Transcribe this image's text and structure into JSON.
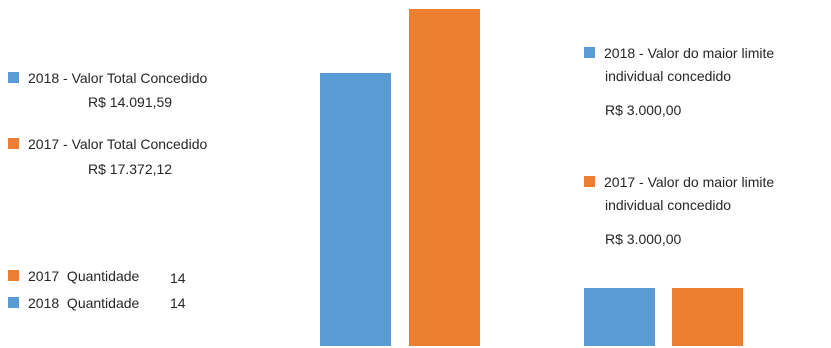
{
  "colors": {
    "y2018": "#5b9bd5",
    "y2017": "#ed7d31"
  },
  "legend": {
    "total_2018_label": "2018 - Valor Total Concedido",
    "total_2018_value": "R$ 14.091,59",
    "total_2017_label": "2017 - Valor Total Concedido",
    "total_2017_value": "R$ 17.372,12",
    "qty_2017_label": "2017  Quantidade",
    "qty_2017_value": "14",
    "qty_2018_label": "2018  Quantidade",
    "qty_2018_value": "14",
    "limit_2018_line1": "2018 - Valor do maior limite",
    "limit_2018_line2": "individual concedido",
    "limit_2018_value": "R$ 3.000,00",
    "limit_2017_line1": "2017 - Valor do maior limite",
    "limit_2017_line2": "individual concedido",
    "limit_2017_value": "R$ 3.000,00"
  },
  "chart_data": [
    {
      "type": "bar",
      "categories": [
        "Valor Total Concedido"
      ],
      "series": [
        {
          "name": "2018 - Valor Total Concedido",
          "values": [
            14091.59
          ],
          "color": "#5b9bd5"
        },
        {
          "name": "2017 - Valor Total Concedido",
          "values": [
            17372.12
          ],
          "color": "#ed7d31"
        }
      ],
      "ylim": [
        0,
        17372.12
      ]
    },
    {
      "type": "bar",
      "categories": [
        "Valor do maior limite individual concedido"
      ],
      "series": [
        {
          "name": "2018 - Valor do maior limite individual concedido",
          "values": [
            3000
          ],
          "color": "#5b9bd5"
        },
        {
          "name": "2017 - Valor do maior limite individual concedido",
          "values": [
            3000
          ],
          "color": "#ed7d31"
        }
      ],
      "ylim": [
        0,
        17372.12
      ]
    }
  ]
}
